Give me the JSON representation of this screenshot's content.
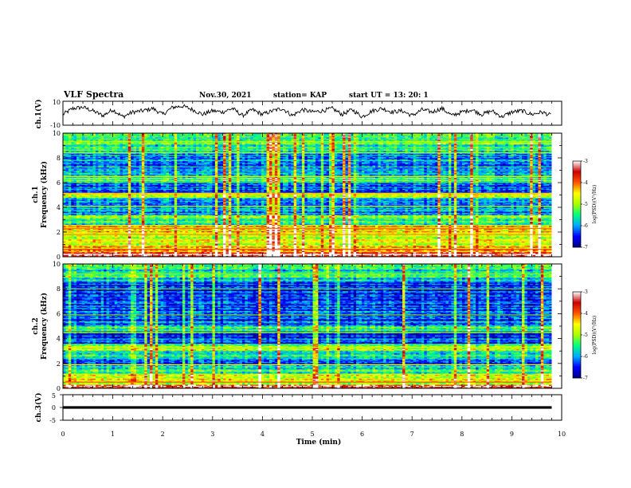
{
  "header": {
    "title": "VLF Spectra",
    "date": "Nov.30, 2021",
    "station": "station= KAP",
    "start": "start UT =  13: 20: 1"
  },
  "chart_data": [
    {
      "type": "line",
      "panel": "ch1-waveform",
      "ylabel": "ch.1(V)",
      "ylim": [
        -10,
        10
      ],
      "yticks": [
        "10",
        "-10"
      ],
      "xlim": [
        0,
        10
      ],
      "color": "#000000",
      "x": [
        0,
        0.2,
        0.4,
        0.6,
        0.8,
        1.0,
        1.2,
        1.4,
        1.6,
        1.8,
        2.0,
        2.2,
        2.4,
        2.6,
        2.8,
        3.0,
        3.2,
        3.4,
        3.6,
        3.8,
        4.0,
        4.2,
        4.4,
        4.6,
        4.8,
        5.0,
        5.2,
        5.4,
        5.6,
        5.8,
        6.0,
        6.2,
        6.4,
        6.6,
        6.8,
        7.0,
        7.2,
        7.4,
        7.6,
        7.8,
        8.0,
        8.2,
        8.4,
        8.6,
        8.8,
        9.0,
        9.2,
        9.4,
        9.6,
        9.8
      ],
      "y": [
        -1,
        4,
        5,
        2,
        -2,
        3,
        -3,
        1,
        2,
        4,
        -1,
        5,
        6,
        3,
        -1,
        2,
        1,
        4,
        -2,
        3,
        -1,
        2,
        4,
        -2,
        3,
        1,
        2,
        4,
        -1,
        3,
        -3,
        2,
        4,
        1,
        2,
        -2,
        3,
        1,
        4,
        -2,
        1,
        3,
        -1,
        2,
        -3,
        1,
        2,
        -1,
        1,
        -2
      ]
    },
    {
      "type": "heatmap",
      "panel": "ch1-spectrogram",
      "ylabel": "ch.1",
      "ylabel2": "Frequency (kHz)",
      "ylim": [
        0,
        10
      ],
      "yticks": [
        "0",
        "2",
        "4",
        "6",
        "8",
        "10"
      ],
      "xlim": [
        0,
        10
      ],
      "x_end": 9.8,
      "colorbar": {
        "label": "log(PSD)(V²/Hz)",
        "range": [
          -7,
          -3
        ],
        "ticks": [
          "-3",
          "-4",
          "-5",
          "-6",
          "-7"
        ],
        "colors": [
          "#00007f",
          "#0000ff",
          "#00aaff",
          "#00ff80",
          "#aaff00",
          "#ffff00",
          "#ff5500",
          "#cc0000",
          "#ffffff"
        ]
      },
      "bands": [
        {
          "range": [
            0,
            0.4
          ],
          "level": -3.2
        },
        {
          "range": [
            0.4,
            1.0
          ],
          "level": -4.3
        },
        {
          "range": [
            1.0,
            2.0
          ],
          "level": -4.9
        },
        {
          "range": [
            2.0,
            2.6
          ],
          "level": -4.4
        },
        {
          "range": [
            2.6,
            3.2
          ],
          "level": -5.7
        },
        {
          "range": [
            3.2,
            3.4
          ],
          "level": -5.2
        },
        {
          "range": [
            3.4,
            4.8
          ],
          "level": -6.1
        },
        {
          "range": [
            4.8,
            5.2
          ],
          "level": -5.0
        },
        {
          "range": [
            5.2,
            6.0
          ],
          "level": -6.3
        },
        {
          "range": [
            6.0,
            6.4
          ],
          "level": -5.3
        },
        {
          "range": [
            6.4,
            8.6
          ],
          "level": -6.0
        },
        {
          "range": [
            8.6,
            10.0
          ],
          "level": -5.4
        }
      ],
      "lines": [
        {
          "freq": 0.6,
          "level": -3.9
        },
        {
          "freq": 1.8,
          "level": -4.2
        },
        {
          "freq": 2.3,
          "level": -4.1
        },
        {
          "freq": 4.1,
          "level": -4.9
        },
        {
          "freq": 5.1,
          "level": -4.3
        },
        {
          "freq": 6.5,
          "level": -4.8
        },
        {
          "freq": 8.4,
          "level": -5.0
        },
        {
          "freq": 9.3,
          "level": -5.0
        }
      ]
    },
    {
      "type": "heatmap",
      "panel": "ch2-spectrogram",
      "ylabel": "ch.2",
      "ylabel2": "Frequency (kHz)",
      "ylim": [
        0,
        10
      ],
      "yticks": [
        "0",
        "2",
        "4",
        "6",
        "8",
        "10"
      ],
      "xlim": [
        0,
        10
      ],
      "x_end": 9.8,
      "colorbar": {
        "label": "log(PSD)(V²/Hz)",
        "range": [
          -7,
          -3
        ],
        "ticks": [
          "-3",
          "-4",
          "-5",
          "-6",
          "-7"
        ],
        "colors": [
          "#00007f",
          "#0000ff",
          "#00aaff",
          "#00ff80",
          "#aaff00",
          "#ffff00",
          "#ff5500",
          "#cc0000",
          "#ffffff"
        ]
      },
      "bands": [
        {
          "range": [
            0,
            0.3
          ],
          "level": -3.3
        },
        {
          "range": [
            0.3,
            1.2
          ],
          "level": -4.8
        },
        {
          "range": [
            1.2,
            1.8
          ],
          "level": -5.5
        },
        {
          "range": [
            1.8,
            2.4
          ],
          "level": -6.2
        },
        {
          "range": [
            2.4,
            3.0
          ],
          "level": -5.6
        },
        {
          "range": [
            3.0,
            3.6
          ],
          "level": -5.1
        },
        {
          "range": [
            3.6,
            4.6
          ],
          "level": -6.3
        },
        {
          "range": [
            4.6,
            5.0
          ],
          "level": -5.4
        },
        {
          "range": [
            5.0,
            7.4
          ],
          "level": -6.2
        },
        {
          "range": [
            7.4,
            8.6
          ],
          "level": -6.4
        },
        {
          "range": [
            8.6,
            10.0
          ],
          "level": -5.6
        }
      ],
      "lines": [
        {
          "freq": 0.5,
          "level": -4.0
        },
        {
          "freq": 1.9,
          "level": -4.6
        },
        {
          "freq": 3.3,
          "level": -4.8
        },
        {
          "freq": 4.5,
          "level": -5.0
        },
        {
          "freq": 5.9,
          "level": -5.1
        },
        {
          "freq": 8.0,
          "level": -5.2
        },
        {
          "freq": 9.2,
          "level": -5.1
        }
      ]
    },
    {
      "type": "line",
      "panel": "ch3-waveform",
      "ylabel": "ch.3(V)",
      "ylim": [
        -5,
        5
      ],
      "yticks": [
        "5",
        "0",
        "-5"
      ],
      "xlim": [
        0,
        10
      ],
      "xlabel": "Time (min)",
      "xticks": [
        "0",
        "1",
        "2",
        "3",
        "4",
        "5",
        "6",
        "7",
        "8",
        "9",
        "10"
      ],
      "band": [
        -0.5,
        0.5
      ],
      "x_end": 9.8,
      "color": "#000000"
    }
  ]
}
